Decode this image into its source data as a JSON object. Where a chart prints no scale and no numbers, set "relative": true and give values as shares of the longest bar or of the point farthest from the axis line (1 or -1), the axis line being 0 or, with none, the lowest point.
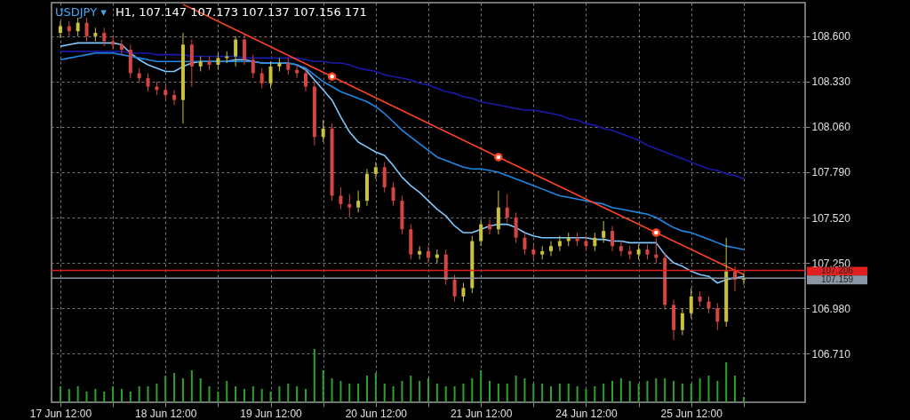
{
  "chart_data": [
    {
      "type": "candlestick",
      "title": "USDJPY ▾",
      "subtitle": "H1, 107.147 107.173 107.137 107.156 171",
      "categories": [
        "17 Jun 12:00",
        null,
        null,
        null,
        null,
        null,
        null,
        null,
        null,
        null,
        null,
        null,
        "18 Jun 12:00",
        null,
        null,
        null,
        null,
        null,
        null,
        null,
        null,
        null,
        null,
        null,
        "19 Jun 12:00",
        null,
        null,
        null,
        null,
        null,
        null,
        null,
        null,
        null,
        null,
        null,
        "20 Jun 12:00",
        null,
        null,
        null,
        null,
        null,
        null,
        null,
        null,
        null,
        null,
        null,
        "21 Jun 12:00",
        null,
        null,
        null,
        null,
        null,
        null,
        null,
        null,
        null,
        null,
        null,
        "24 Jun 12:00",
        null,
        null,
        null,
        null,
        null,
        null,
        null,
        null,
        null,
        null,
        null,
        "25 Jun 12:00",
        null,
        null,
        null,
        null,
        null,
        null
      ],
      "ohlc": [
        [
          108.62,
          108.69,
          108.59,
          108.66
        ],
        [
          108.66,
          108.69,
          108.6,
          108.63
        ],
        [
          108.63,
          108.71,
          108.6,
          108.68
        ],
        [
          108.68,
          108.71,
          108.57,
          108.6
        ],
        [
          108.6,
          108.65,
          108.57,
          108.62
        ],
        [
          108.62,
          108.65,
          108.54,
          108.57
        ],
        [
          108.57,
          108.6,
          108.52,
          108.55
        ],
        [
          108.55,
          108.58,
          108.49,
          108.52
        ],
        [
          108.52,
          108.55,
          108.35,
          108.38
        ],
        [
          108.38,
          108.41,
          108.32,
          108.35
        ],
        [
          108.35,
          108.38,
          108.27,
          108.3
        ],
        [
          108.3,
          108.33,
          108.25,
          108.28
        ],
        [
          108.28,
          108.31,
          108.22,
          108.25
        ],
        [
          108.25,
          108.28,
          108.19,
          108.22
        ],
        [
          108.22,
          108.62,
          108.08,
          108.55
        ],
        [
          108.55,
          108.58,
          108.3,
          108.42
        ],
        [
          108.42,
          108.48,
          108.39,
          108.45
        ],
        [
          108.45,
          108.48,
          108.4,
          108.43
        ],
        [
          108.43,
          108.5,
          108.4,
          108.47
        ],
        [
          108.47,
          108.51,
          108.44,
          108.48
        ],
        [
          108.48,
          108.6,
          108.42,
          108.58
        ],
        [
          108.58,
          108.61,
          108.43,
          108.46
        ],
        [
          108.46,
          108.49,
          108.35,
          108.38
        ],
        [
          108.38,
          108.41,
          108.29,
          108.32
        ],
        [
          108.32,
          108.45,
          108.29,
          108.42
        ],
        [
          108.42,
          108.47,
          108.39,
          108.44
        ],
        [
          108.44,
          108.47,
          108.37,
          108.4
        ],
        [
          108.4,
          108.43,
          108.35,
          108.38
        ],
        [
          108.38,
          108.41,
          108.27,
          108.3
        ],
        [
          108.3,
          108.33,
          107.95,
          108.0
        ],
        [
          108.0,
          108.1,
          107.97,
          108.05
        ],
        [
          108.05,
          108.08,
          107.62,
          107.65
        ],
        [
          107.65,
          107.7,
          107.57,
          107.6
        ],
        [
          107.6,
          107.66,
          107.52,
          107.58
        ],
        [
          107.58,
          107.68,
          107.55,
          107.62
        ],
        [
          107.62,
          107.81,
          107.59,
          107.78
        ],
        [
          107.78,
          107.85,
          107.75,
          107.82
        ],
        [
          107.82,
          107.85,
          107.67,
          107.7
        ],
        [
          107.7,
          107.73,
          107.59,
          107.62
        ],
        [
          107.62,
          107.65,
          107.42,
          107.45
        ],
        [
          107.45,
          107.48,
          107.27,
          107.3
        ],
        [
          107.3,
          107.35,
          107.27,
          107.32
        ],
        [
          107.32,
          107.35,
          107.25,
          107.28
        ],
        [
          107.28,
          107.33,
          107.25,
          107.3
        ],
        [
          107.3,
          107.33,
          107.12,
          107.15
        ],
        [
          107.15,
          107.18,
          107.02,
          107.05
        ],
        [
          107.05,
          107.13,
          107.02,
          107.1
        ],
        [
          107.1,
          107.41,
          107.07,
          107.38
        ],
        [
          107.38,
          107.51,
          107.35,
          107.48
        ],
        [
          107.48,
          107.51,
          107.42,
          107.45
        ],
        [
          107.45,
          107.68,
          107.42,
          107.58
        ],
        [
          107.58,
          107.66,
          107.49,
          107.52
        ],
        [
          107.52,
          107.55,
          107.37,
          107.4
        ],
        [
          107.4,
          107.43,
          107.3,
          107.33
        ],
        [
          107.33,
          107.36,
          107.27,
          107.3
        ],
        [
          107.3,
          107.35,
          107.27,
          107.32
        ],
        [
          107.32,
          107.38,
          107.29,
          107.35
        ],
        [
          107.35,
          107.41,
          107.32,
          107.38
        ],
        [
          107.38,
          107.43,
          107.35,
          107.4
        ],
        [
          107.4,
          107.43,
          107.35,
          107.38
        ],
        [
          107.38,
          107.41,
          107.32,
          107.35
        ],
        [
          107.35,
          107.43,
          107.32,
          107.4
        ],
        [
          107.4,
          107.5,
          107.37,
          107.44
        ],
        [
          107.44,
          107.47,
          107.32,
          107.35
        ],
        [
          107.35,
          107.38,
          107.29,
          107.32
        ],
        [
          107.32,
          107.35,
          107.27,
          107.3
        ],
        [
          107.3,
          107.36,
          107.27,
          107.33
        ],
        [
          107.33,
          107.36,
          107.27,
          107.3
        ],
        [
          107.3,
          107.4,
          107.25,
          107.28
        ],
        [
          107.28,
          107.31,
          106.97,
          107.0
        ],
        [
          107.0,
          107.03,
          106.79,
          106.85
        ],
        [
          106.85,
          106.98,
          106.82,
          106.95
        ],
        [
          106.95,
          107.1,
          106.92,
          107.05
        ],
        [
          107.05,
          107.08,
          106.99,
          107.02
        ],
        [
          107.02,
          107.05,
          106.95,
          106.98
        ],
        [
          106.98,
          107.01,
          106.85,
          106.9
        ],
        [
          106.9,
          107.4,
          106.87,
          107.2
        ],
        [
          107.2,
          107.23,
          107.08,
          107.15
        ],
        [
          107.15,
          107.19,
          107.12,
          107.16
        ]
      ],
      "colors": [
        "#c9c23a",
        "#d64541",
        "#c9c23a",
        "#d64541",
        "#c9c23a",
        "#d64541",
        "#d64541",
        "#d64541",
        "#d64541",
        "#d64541",
        "#d64541",
        "#d64541",
        "#d64541",
        "#d64541",
        "#c9c23a",
        "#d64541",
        "#c9c23a",
        "#d64541",
        "#c9c23a",
        "#c9c23a",
        "#c9c23a",
        "#d64541",
        "#d64541",
        "#d64541",
        "#c9c23a",
        "#c9c23a",
        "#d64541",
        "#d64541",
        "#d64541",
        "#d64541",
        "#c9c23a",
        "#d64541",
        "#d64541",
        "#d64541",
        "#c9c23a",
        "#c9c23a",
        "#c9c23a",
        "#d64541",
        "#d64541",
        "#d64541",
        "#d64541",
        "#c9c23a",
        "#d64541",
        "#c9c23a",
        "#d64541",
        "#d64541",
        "#c9c23a",
        "#c9c23a",
        "#c9c23a",
        "#d64541",
        "#c9c23a",
        "#d64541",
        "#d64541",
        "#d64541",
        "#d64541",
        "#c9c23a",
        "#c9c23a",
        "#c9c23a",
        "#c9c23a",
        "#d64541",
        "#d64541",
        "#c9c23a",
        "#c9c23a",
        "#d64541",
        "#d64541",
        "#d64541",
        "#c9c23a",
        "#d64541",
        "#d64541",
        "#d64541",
        "#d64541",
        "#c9c23a",
        "#c9c23a",
        "#d64541",
        "#d64541",
        "#d64541",
        "#c9c23a",
        "#d64541",
        "#c9c23a"
      ],
      "series": [
        {
          "type": "line",
          "color": "#7ec8ff",
          "values": [
            108.54,
            108.55,
            108.56,
            108.56,
            108.56,
            108.56,
            108.56,
            108.55,
            108.5,
            108.46,
            108.43,
            108.41,
            108.39,
            108.39,
            108.42,
            108.44,
            108.45,
            108.45,
            108.45,
            108.45,
            108.46,
            108.46,
            108.45,
            108.44,
            108.44,
            108.44,
            108.44,
            108.43,
            108.4,
            108.34,
            108.28,
            108.22,
            108.12,
            108.03,
            107.97,
            107.94,
            107.91,
            107.89,
            107.83,
            107.76,
            107.71,
            107.67,
            107.62,
            107.57,
            107.53,
            107.47,
            107.43,
            107.43,
            107.45,
            107.47,
            107.48,
            107.48,
            107.46,
            107.43,
            107.41,
            107.4,
            107.4,
            107.4,
            107.4,
            107.4,
            107.4,
            107.39,
            107.39,
            107.38,
            107.38,
            107.37,
            107.37,
            107.37,
            107.37,
            107.3,
            107.25,
            107.23,
            107.2,
            107.18,
            107.17,
            107.13,
            107.15,
            107.16,
            107.17
          ]
        },
        {
          "type": "line",
          "color": "#1e88e5",
          "values": [
            108.46,
            108.47,
            108.48,
            108.49,
            108.5,
            108.5,
            108.5,
            108.49,
            108.48,
            108.47,
            108.46,
            108.45,
            108.45,
            108.45,
            108.45,
            108.45,
            108.45,
            108.45,
            108.45,
            108.45,
            108.45,
            108.45,
            108.45,
            108.44,
            108.44,
            108.44,
            108.44,
            108.43,
            108.41,
            108.37,
            108.33,
            108.3,
            108.27,
            108.25,
            108.23,
            108.21,
            108.18,
            108.14,
            108.09,
            108.04,
            108.0,
            107.96,
            107.92,
            107.88,
            107.86,
            107.84,
            107.82,
            107.81,
            107.81,
            107.8,
            107.79,
            107.77,
            107.75,
            107.73,
            107.71,
            107.69,
            107.67,
            107.65,
            107.64,
            107.63,
            107.62,
            107.61,
            107.6,
            107.58,
            107.57,
            107.56,
            107.55,
            107.54,
            107.52,
            107.49,
            107.46,
            107.44,
            107.43,
            107.41,
            107.39,
            107.37,
            107.35,
            107.34,
            107.33
          ]
        },
        {
          "type": "line",
          "color": "#1a1aa8",
          "values": [
            108.51,
            108.51,
            108.51,
            108.51,
            108.51,
            108.51,
            108.51,
            108.51,
            108.5,
            108.5,
            108.5,
            108.49,
            108.49,
            108.49,
            108.49,
            108.48,
            108.48,
            108.48,
            108.48,
            108.48,
            108.48,
            108.47,
            108.47,
            108.47,
            108.47,
            108.47,
            108.47,
            108.47,
            108.46,
            108.45,
            108.45,
            108.44,
            108.44,
            108.43,
            108.41,
            108.4,
            108.39,
            108.37,
            108.36,
            108.35,
            108.34,
            108.32,
            108.31,
            108.29,
            108.27,
            108.26,
            108.24,
            108.23,
            108.21,
            108.2,
            108.19,
            108.18,
            108.17,
            108.16,
            108.16,
            108.15,
            108.14,
            108.13,
            108.11,
            108.1,
            108.08,
            108.07,
            108.05,
            108.04,
            108.02,
            108.0,
            107.98,
            107.95,
            107.93,
            107.91,
            107.89,
            107.87,
            107.85,
            107.83,
            107.81,
            107.8,
            107.78,
            107.77,
            107.75
          ]
        },
        {
          "type": "line",
          "color": "#ff4422",
          "values": [
            null,
            null,
            null,
            null,
            null,
            null,
            null,
            null,
            null,
            null,
            null,
            null,
            null,
            null,
            108.79,
            null,
            null,
            null,
            null,
            null,
            null,
            null,
            null,
            null,
            null,
            null,
            null,
            null,
            null,
            null,
            null,
            108.36,
            null,
            null,
            null,
            null,
            null,
            null,
            null,
            null,
            null,
            null,
            null,
            null,
            null,
            null,
            null,
            null,
            null,
            null,
            107.88,
            null,
            null,
            null,
            null,
            null,
            null,
            null,
            null,
            null,
            null,
            null,
            null,
            null,
            null,
            null,
            null,
            null,
            107.43,
            null,
            null,
            null,
            null,
            null,
            null,
            null,
            null,
            null,
            107.18
          ]
        },
        {
          "type": "scatter",
          "marker": "circle",
          "color": "#ff4422",
          "values": [
            null,
            null,
            null,
            null,
            null,
            null,
            null,
            null,
            null,
            null,
            null,
            null,
            null,
            null,
            null,
            null,
            null,
            null,
            null,
            null,
            null,
            null,
            null,
            null,
            null,
            null,
            null,
            null,
            null,
            null,
            null,
            108.36,
            null,
            null,
            null,
            null,
            null,
            null,
            null,
            null,
            null,
            null,
            null,
            null,
            null,
            null,
            null,
            null,
            null,
            null,
            107.88,
            null,
            null,
            null,
            null,
            null,
            null,
            null,
            null,
            null,
            null,
            null,
            null,
            null,
            null,
            null,
            null,
            null,
            107.43,
            null,
            null,
            null,
            null,
            null,
            null,
            null,
            null,
            null,
            null
          ]
        }
      ],
      "ylim": [
        106.42,
        108.8
      ],
      "yticks": [
        {
          "value": 108.6,
          "label": "108.600"
        },
        {
          "value": 108.33,
          "label": "108.330"
        },
        {
          "value": 108.06,
          "label": "108.060"
        },
        {
          "value": 107.79,
          "label": "107.790"
        },
        {
          "value": 107.52,
          "label": "107.520"
        },
        {
          "value": 107.25,
          "label": "107.250"
        },
        {
          "value": 106.98,
          "label": "106.980"
        },
        {
          "value": 106.71,
          "label": "106.710"
        }
      ],
      "ref_lines": [
        {
          "axis": "y",
          "value": 107.206,
          "label": "107.206",
          "color": "#e02020"
        },
        {
          "axis": "y",
          "value": 107.159,
          "label": "107.159",
          "color": "#8a96a3"
        }
      ],
      "grid": true
    },
    {
      "type": "bar",
      "relative": true,
      "color": "#2ea02e",
      "values": [
        0.3,
        0.25,
        0.3,
        0.2,
        0.25,
        0.2,
        0.3,
        0.25,
        0.2,
        0.3,
        0.3,
        0.35,
        0.5,
        0.55,
        0.45,
        0.6,
        0.45,
        0.3,
        0.2,
        0.4,
        0.3,
        0.25,
        0.3,
        0.25,
        0.2,
        0.3,
        0.35,
        0.3,
        0.25,
        1.0,
        0.6,
        0.45,
        0.4,
        0.35,
        0.35,
        0.5,
        0.55,
        0.35,
        0.3,
        0.4,
        0.5,
        0.4,
        0.45,
        0.35,
        0.3,
        0.3,
        0.35,
        0.45,
        0.6,
        0.4,
        0.35,
        0.35,
        0.5,
        0.45,
        0.35,
        0.35,
        0.3,
        0.35,
        0.35,
        0.3,
        0.25,
        0.3,
        0.35,
        0.4,
        0.45,
        0.4,
        0.35,
        0.4,
        0.45,
        0.45,
        0.4,
        0.35,
        0.35,
        0.45,
        0.5,
        0.4,
        0.75,
        0.5,
        0.1
      ]
    }
  ]
}
